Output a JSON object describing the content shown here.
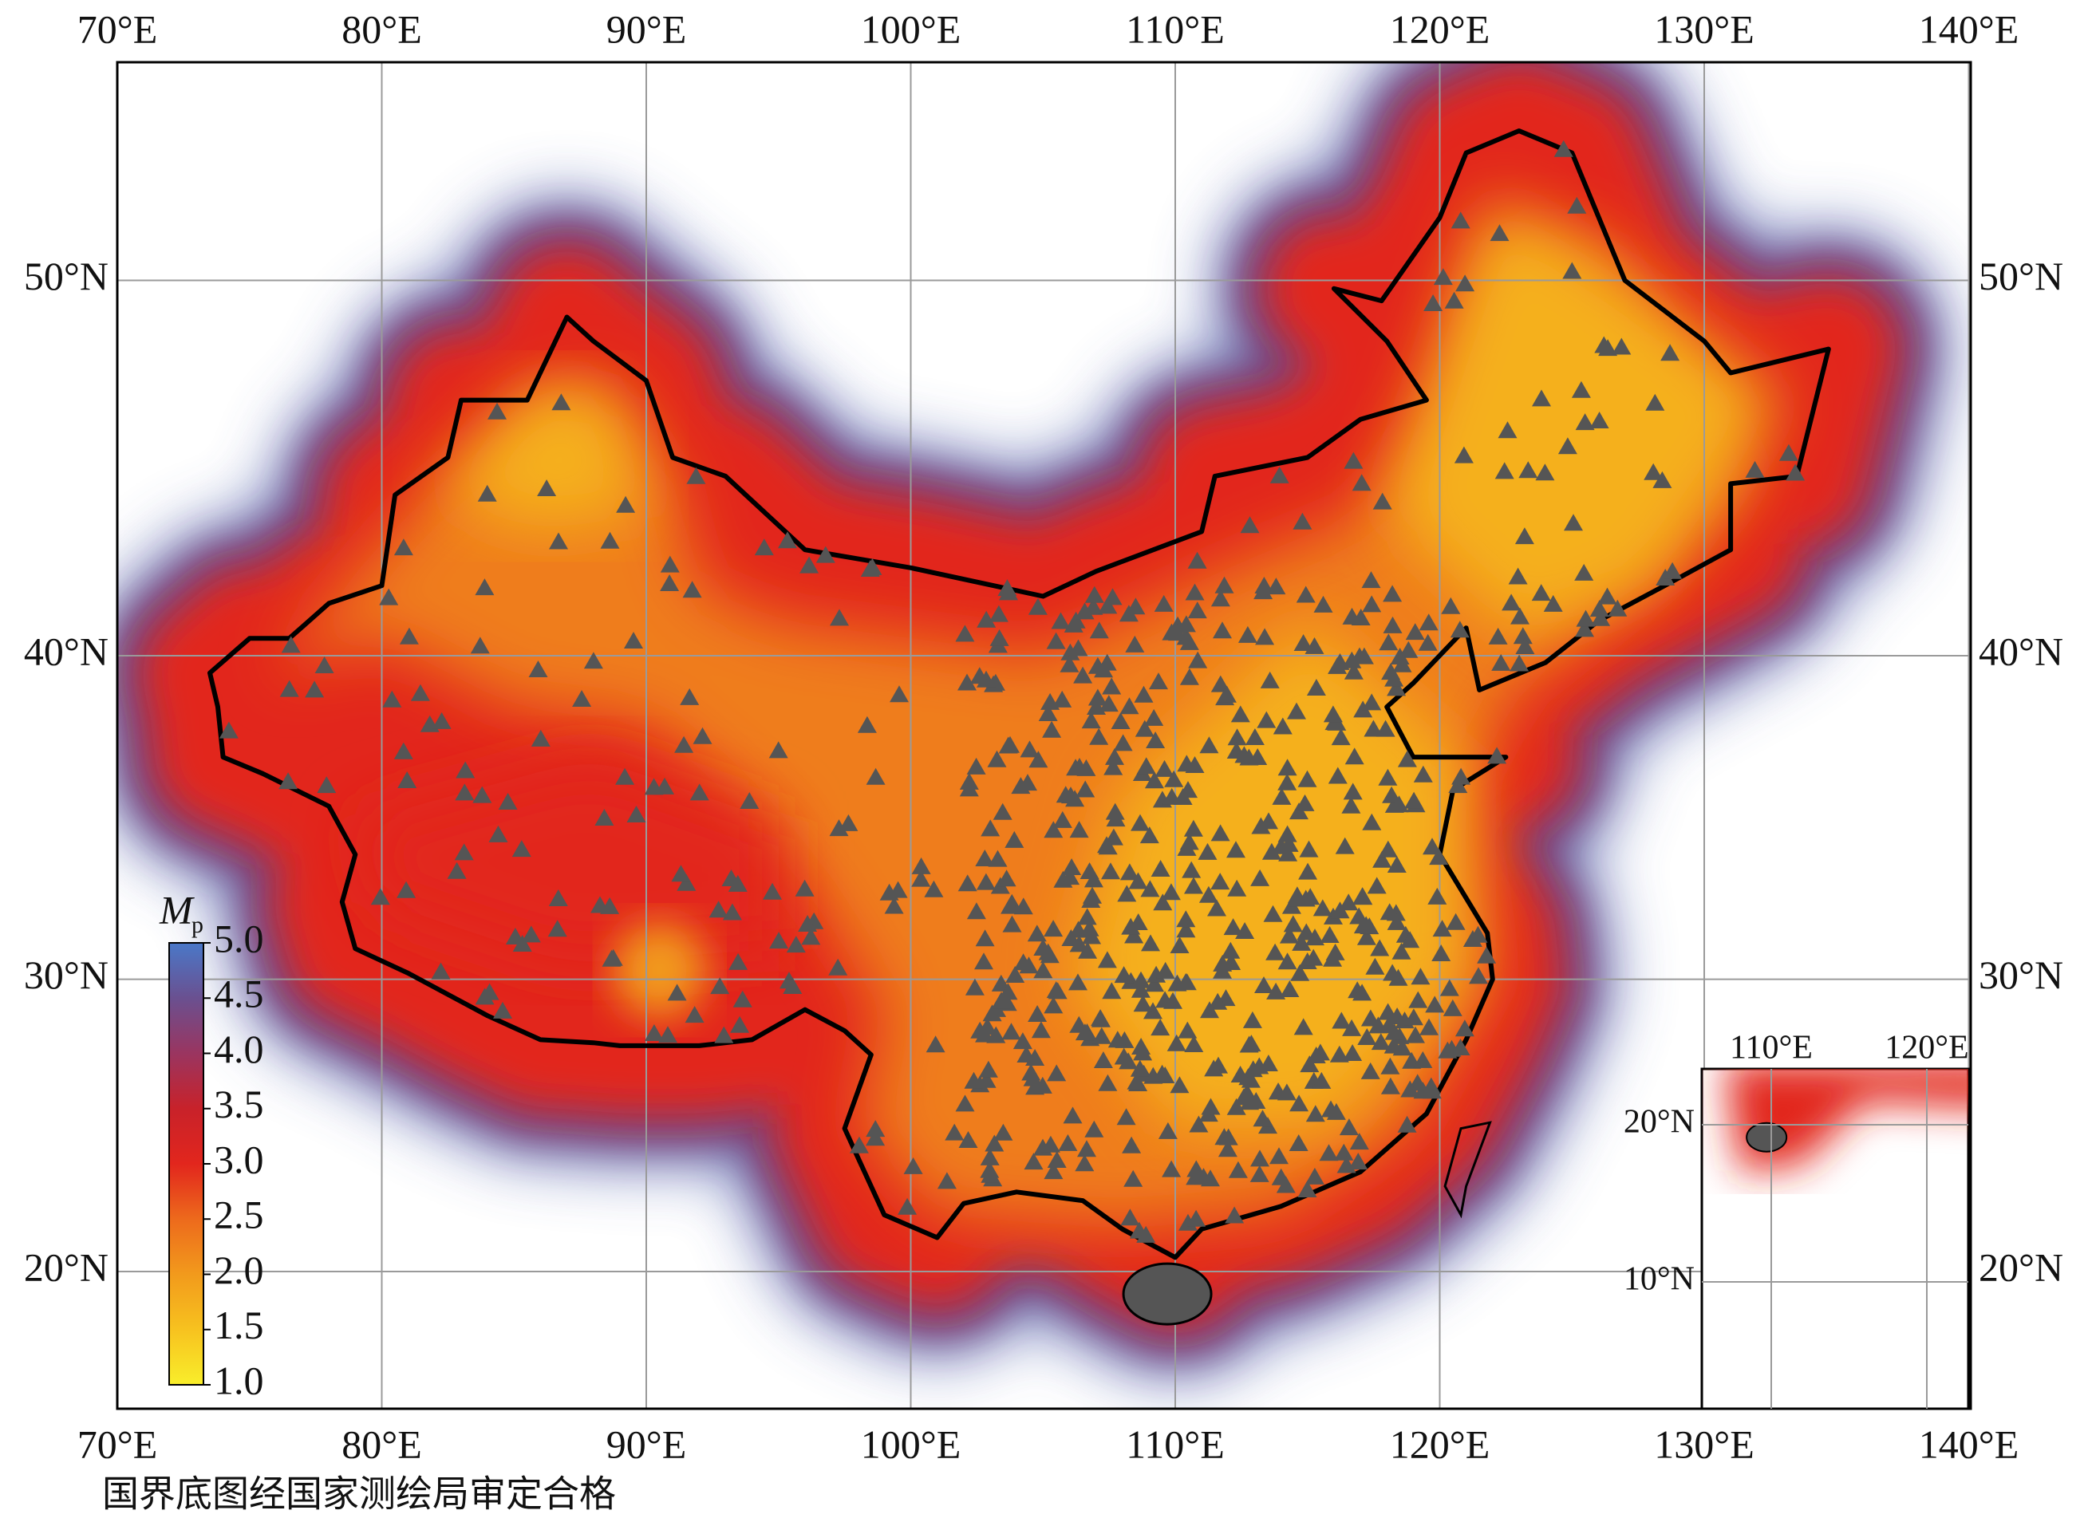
{
  "map": {
    "lon_ticks": [
      {
        "value": 70,
        "label": "70°E"
      },
      {
        "value": 80,
        "label": "80°E"
      },
      {
        "value": 90,
        "label": "90°E"
      },
      {
        "value": 100,
        "label": "100°E"
      },
      {
        "value": 110,
        "label": "110°E"
      },
      {
        "value": 120,
        "label": "120°E"
      },
      {
        "value": 130,
        "label": "130°E"
      },
      {
        "value": 140,
        "label": "140°E"
      }
    ],
    "lat_ticks": [
      {
        "value": 20,
        "label": "20°N"
      },
      {
        "value": 30,
        "label": "30°N"
      },
      {
        "value": 40,
        "label": "40°N"
      },
      {
        "value": 50,
        "label": "50°N"
      }
    ],
    "colorbar": {
      "title": "M",
      "subscript": "p",
      "ticks": [
        {
          "value": 1,
          "label": "1.0"
        },
        {
          "value": 1.5,
          "label": "1.5"
        },
        {
          "value": 2,
          "label": "2.0"
        },
        {
          "value": 2.5,
          "label": "2.5"
        },
        {
          "value": 3,
          "label": "3.0"
        },
        {
          "value": 3.5,
          "label": "3.5"
        },
        {
          "value": 4,
          "label": "4.0"
        },
        {
          "value": 4.5,
          "label": "4.5"
        },
        {
          "value": 5,
          "label": "5.0"
        }
      ],
      "colors": [
        "#f9ee2b",
        "#f7c21f",
        "#f29a1c",
        "#ed6a1c",
        "#e2261d",
        "#c8222a",
        "#9a3560",
        "#6a5090",
        "#4a78c8"
      ]
    },
    "inset": {
      "lon_ticks": [
        {
          "value": 110,
          "label": "110°E"
        },
        {
          "value": 120,
          "label": "120°E"
        }
      ],
      "lat_ticks": [
        {
          "value": 10,
          "label": "10°N"
        },
        {
          "value": 20,
          "label": "20°N"
        }
      ]
    }
  },
  "note": "国界底图经国家测绘局审定合格"
}
